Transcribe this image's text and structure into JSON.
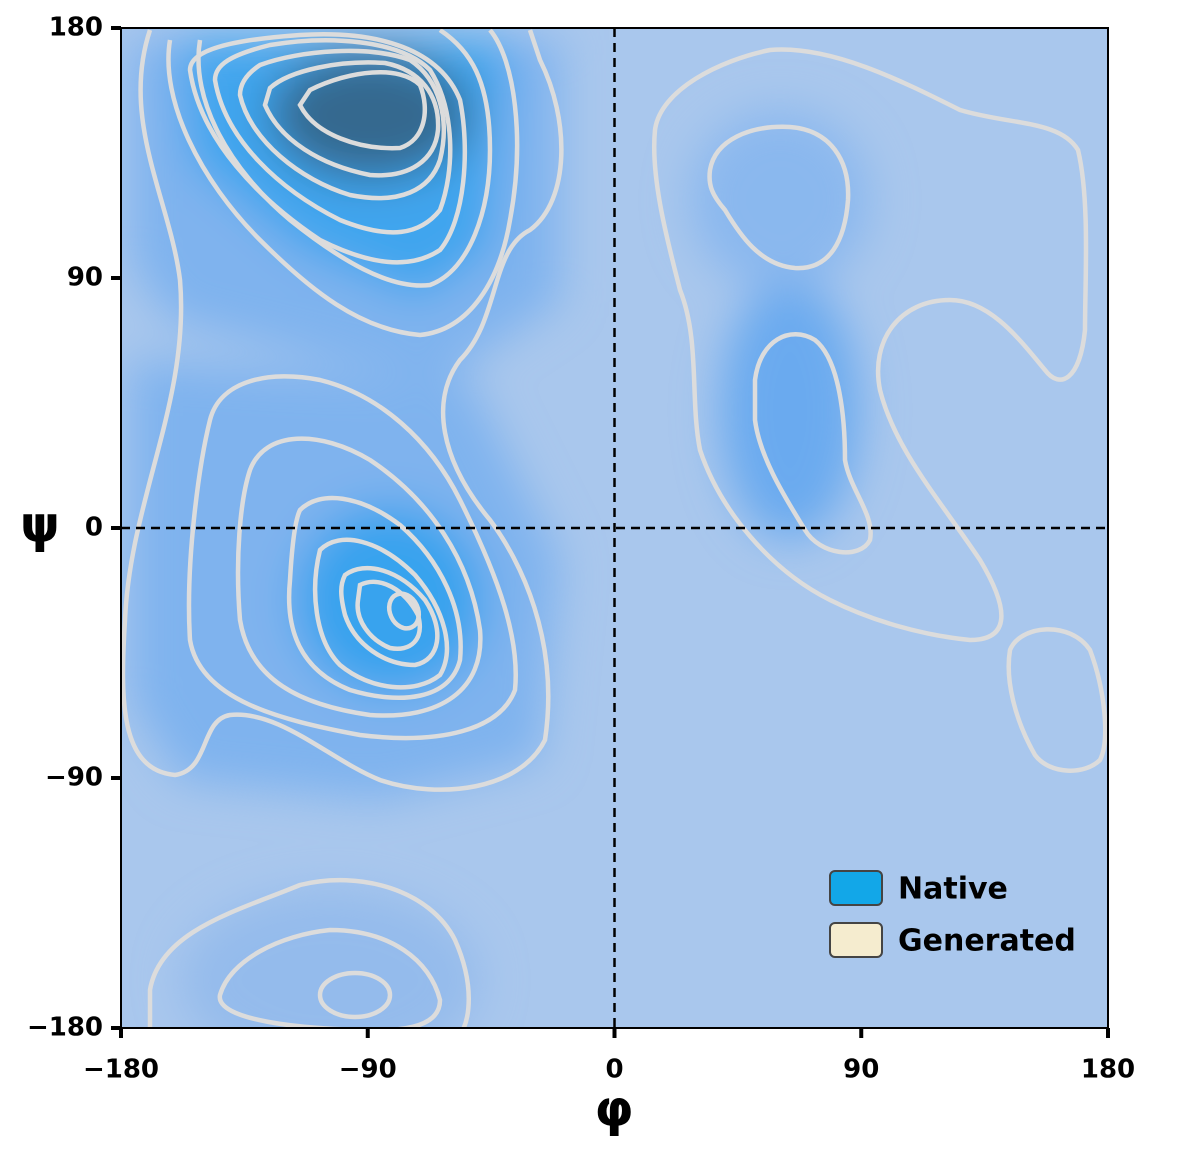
{
  "chart_data": {
    "type": "contour",
    "x_label": "φ",
    "y_label": "ψ",
    "xlim": [
      -180,
      180
    ],
    "ylim": [
      -180,
      180
    ],
    "xticks": [
      {
        "value": -180,
        "label": "−180"
      },
      {
        "value": -90,
        "label": "−90"
      },
      0,
      90,
      180
    ],
    "yticks": [
      {
        "value": -180,
        "label": "−180"
      },
      {
        "value": -90,
        "label": "−90"
      },
      0,
      90,
      180
    ],
    "background": "#a9c7ed",
    "legend": "lower right",
    "series": [
      {
        "name": "Native",
        "color": "#12a7e8"
      },
      {
        "name": "Generated",
        "color": "#f5eccf"
      }
    ]
  }
}
